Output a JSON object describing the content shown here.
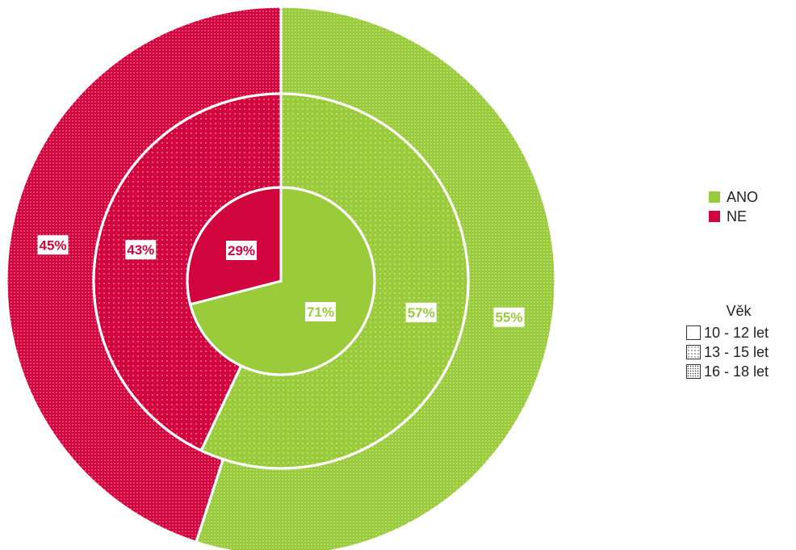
{
  "chart_data": {
    "type": "pie",
    "subtype": "concentric-donut",
    "categories": [
      "ANO",
      "NE"
    ],
    "colors": {
      "ANO": "#9ACB3A",
      "NE": "#D2063E"
    },
    "rings": [
      {
        "name": "10 - 12 let",
        "pattern": "none",
        "values": {
          "ANO": 71,
          "NE": 29
        },
        "labels": {
          "ANO": "71%",
          "NE": "29%"
        }
      },
      {
        "name": "13 - 15 let",
        "pattern": "light-dots",
        "values": {
          "ANO": 57,
          "NE": 43
        },
        "labels": {
          "ANO": "57%",
          "NE": "43%"
        }
      },
      {
        "name": "16 - 18 let",
        "pattern": "dense-dots",
        "values": {
          "ANO": 55,
          "NE": 45
        },
        "labels": {
          "ANO": "55%",
          "NE": "45%"
        }
      }
    ],
    "start_angle": "12 o'clock",
    "direction": "clockwise"
  },
  "legend": {
    "series": [
      {
        "label": "ANO",
        "color": "#9ACB3A"
      },
      {
        "label": "NE",
        "color": "#D2063E"
      }
    ],
    "age_title": "Věk",
    "age_items": [
      {
        "label": "10 - 12 let",
        "pattern": "none"
      },
      {
        "label": "13 - 15 let",
        "pattern": "light-dots"
      },
      {
        "label": "16 - 18 let",
        "pattern": "dense-dots"
      }
    ]
  }
}
